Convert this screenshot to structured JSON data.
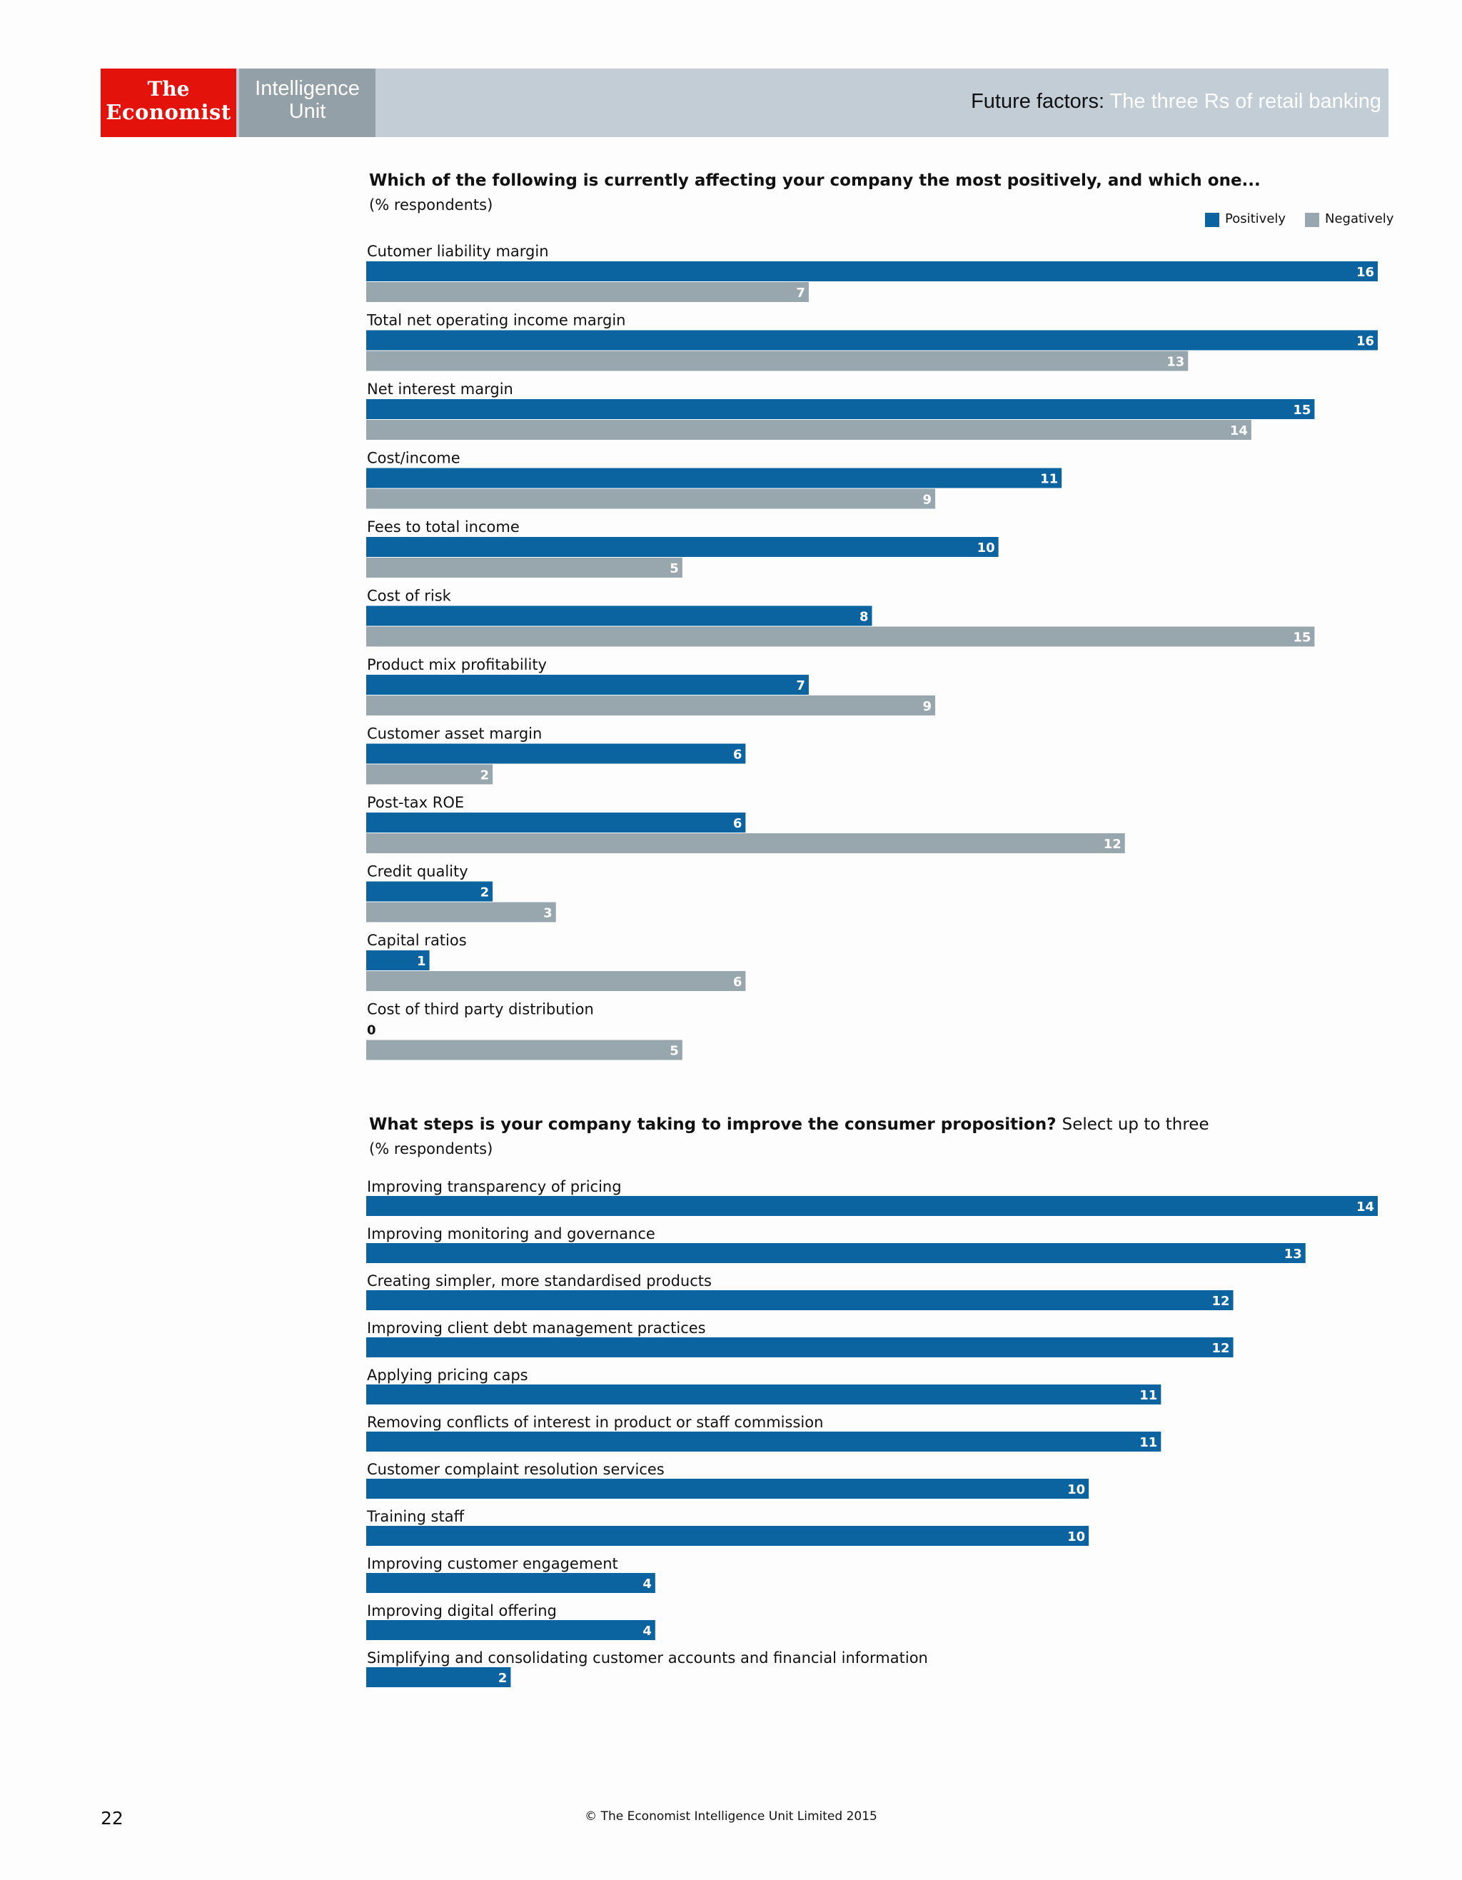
{
  "header": {
    "logo_line1": "The",
    "logo_line2": "Economist",
    "unit_line1": "Intelligence",
    "unit_line2": "Unit",
    "title_prefix": "Future factors: ",
    "title_suffix": "The three Rs of retail banking"
  },
  "colors": {
    "positive": "#0b64a0",
    "negative": "#98a6ae",
    "header": "#c2cdd5",
    "brand_red": "#e3120b"
  },
  "chart_data": [
    {
      "type": "bar",
      "orientation": "horizontal",
      "title": "Which of the following is currently affecting your company the most positively, and which one...",
      "subtitle": "(% respondents)",
      "legend_position": "top-right",
      "xlim": [
        0,
        16
      ],
      "categories": [
        "Cutomer liability margin",
        "Total net operating income margin",
        "Net interest margin",
        "Cost/income",
        "Fees to total income",
        "Cost of risk",
        "Product mix profitability",
        "Customer asset margin",
        "Post-tax ROE",
        "Credit quality",
        "Capital ratios",
        "Cost of third party distribution"
      ],
      "series": [
        {
          "name": "Positively",
          "values": [
            16,
            16,
            15,
            11,
            10,
            8,
            7,
            6,
            6,
            2,
            1,
            0
          ]
        },
        {
          "name": "Negatively",
          "values": [
            7,
            13,
            14,
            9,
            5,
            15,
            9,
            2,
            12,
            3,
            6,
            5
          ]
        }
      ]
    },
    {
      "type": "bar",
      "orientation": "horizontal",
      "title": "What steps is your company taking to improve the consumer proposition?",
      "title_note": "Select up to three",
      "subtitle": "(% respondents)",
      "xlim": [
        0,
        14
      ],
      "categories": [
        "Improving transparency of pricing",
        "Improving monitoring and governance",
        "Creating simpler, more standardised products",
        "Improving client debt management practices",
        "Applying pricing caps",
        "Removing conflicts of interest in product or staff commission",
        "Customer complaint resolution services",
        "Training staff",
        "Improving customer engagement",
        "Improving digital offering",
        "Simplifying and consolidating customer accounts and financial information"
      ],
      "series": [
        {
          "values": [
            14,
            13,
            12,
            12,
            11,
            11,
            10,
            10,
            4,
            4,
            2
          ]
        }
      ]
    }
  ],
  "footer": {
    "page_number": "22",
    "copyright": "© The Economist Intelligence Unit Limited 2015"
  }
}
